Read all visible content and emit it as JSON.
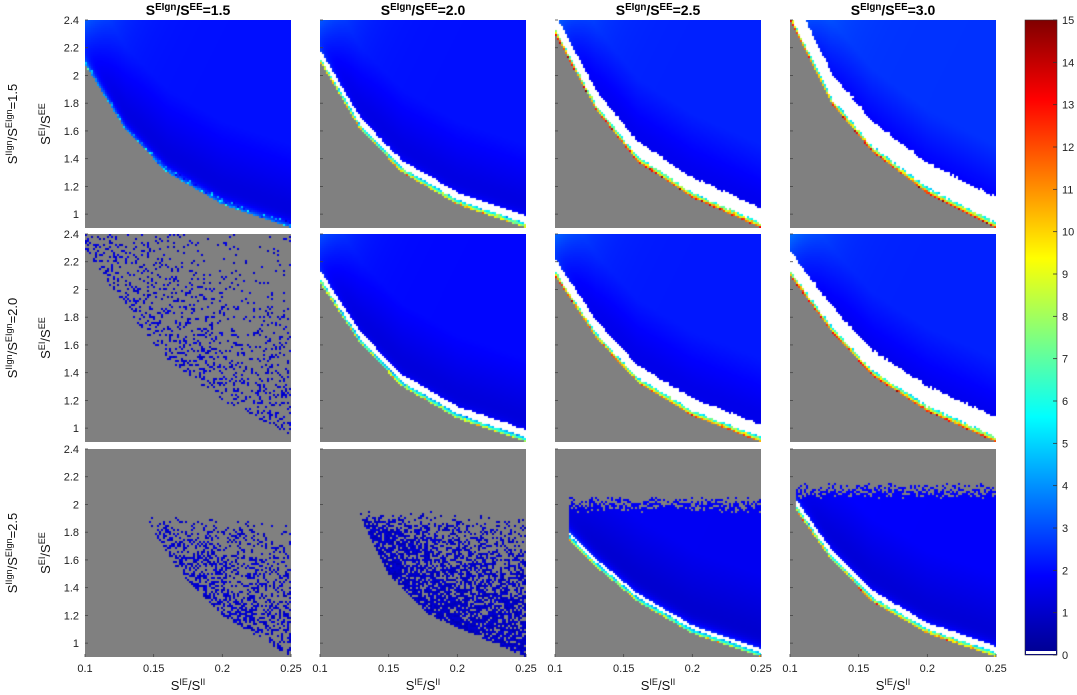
{
  "chart_data": {
    "type": "heatmap",
    "layout": "3x4 grid of small multiples sharing axes",
    "col_titles": [
      {
        "base": "S",
        "sup": "EIgn",
        "mid": "/S",
        "sup2": "EE",
        "value": "=1.5"
      },
      {
        "base": "S",
        "sup": "EIgn",
        "mid": "/S",
        "sup2": "EE",
        "value": "=2.0"
      },
      {
        "base": "S",
        "sup": "EIgn",
        "mid": "/S",
        "sup2": "EE",
        "value": "=2.5"
      },
      {
        "base": "S",
        "sup": "EIgn",
        "mid": "/S",
        "sup2": "EE",
        "value": "=3.0"
      }
    ],
    "row_titles": [
      {
        "base": "S",
        "sup": "IIgn",
        "mid": "/S",
        "sup2": "EIgn",
        "value": "=1.5"
      },
      {
        "base": "S",
        "sup": "IIgn",
        "mid": "/S",
        "sup2": "EIgn",
        "value": "=2.0"
      },
      {
        "base": "S",
        "sup": "IIgn",
        "mid": "/S",
        "sup2": "EIgn",
        "value": "=2.5"
      }
    ],
    "xlabel": {
      "base": "S",
      "sup": "IE",
      "mid": "/S",
      "sup2": "II"
    },
    "ylabel": {
      "base": "S",
      "sup": "EI",
      "mid": "/S",
      "sup2": "EE"
    },
    "xlim": [
      0.1,
      0.25
    ],
    "ylim": [
      0.9,
      2.4
    ],
    "xticks": [
      0.1,
      0.15,
      0.2,
      0.25
    ],
    "xtick_labels": [
      "0.1",
      "0.15",
      "0.2",
      "0.25"
    ],
    "yticks": [
      1,
      1.2,
      1.4,
      1.6,
      1.8,
      2,
      2.2,
      2.4
    ],
    "ytick_labels": [
      "1",
      "1.2",
      "1.4",
      "1.6",
      "1.8",
      "2",
      "2.2",
      "2.4"
    ],
    "colorbar": {
      "min": 0,
      "max": 15,
      "ticks": [
        0,
        1,
        2,
        3,
        4,
        5,
        6,
        7,
        8,
        9,
        10,
        11,
        12,
        13,
        14,
        15
      ],
      "tick_labels": [
        "0",
        "1",
        "2",
        "3",
        "4",
        "5",
        "6",
        "7",
        "8",
        "9",
        "10",
        "11",
        "12",
        "13",
        "14",
        "15"
      ],
      "colormap": "jet"
    },
    "background_color": "#808080",
    "saturated_color": "#ffffff",
    "panels": [
      {
        "row": 0,
        "col": 0,
        "boundary": [
          [
            0.1,
            2.08
          ],
          [
            0.13,
            1.6
          ],
          [
            0.16,
            1.3
          ],
          [
            0.2,
            1.07
          ],
          [
            0.25,
            0.9
          ]
        ],
        "mode": "solid",
        "level": 1.6,
        "edge_peak": 3,
        "white_band": false,
        "band_width": 0.04,
        "density": 1
      },
      {
        "row": 0,
        "col": 1,
        "boundary": [
          [
            0.1,
            2.1
          ],
          [
            0.13,
            1.6
          ],
          [
            0.16,
            1.3
          ],
          [
            0.2,
            1.07
          ],
          [
            0.25,
            0.9
          ]
        ],
        "mode": "solid",
        "level": 1.6,
        "edge_peak": 9,
        "white_band": true,
        "band_width": 0.06,
        "density": 1
      },
      {
        "row": 0,
        "col": 2,
        "boundary": [
          [
            0.1,
            2.3
          ],
          [
            0.13,
            1.75
          ],
          [
            0.16,
            1.38
          ],
          [
            0.2,
            1.12
          ],
          [
            0.25,
            0.9
          ]
        ],
        "mode": "solid",
        "level": 1.8,
        "edge_peak": 12,
        "white_band": true,
        "band_width": 0.12,
        "density": 1
      },
      {
        "row": 0,
        "col": 3,
        "boundary": [
          [
            0.1,
            2.4
          ],
          [
            0.13,
            1.8
          ],
          [
            0.16,
            1.45
          ],
          [
            0.2,
            1.15
          ],
          [
            0.25,
            0.9
          ]
        ],
        "mode": "solid",
        "level": 2,
        "edge_peak": 12,
        "white_band": true,
        "band_width": 0.2,
        "density": 1
      },
      {
        "row": 1,
        "col": 0,
        "boundary": [
          [
            0.1,
            2.3
          ],
          [
            0.13,
            1.85
          ],
          [
            0.16,
            1.5
          ],
          [
            0.2,
            1.2
          ],
          [
            0.25,
            0.95
          ]
        ],
        "mode": "sparse",
        "level": 1.4,
        "edge_peak": 1.5,
        "white_band": false,
        "band_width": 0,
        "density": 0.25
      },
      {
        "row": 1,
        "col": 1,
        "boundary": [
          [
            0.1,
            2.05
          ],
          [
            0.13,
            1.6
          ],
          [
            0.16,
            1.3
          ],
          [
            0.2,
            1.07
          ],
          [
            0.25,
            0.9
          ]
        ],
        "mode": "solid",
        "level": 1.5,
        "edge_peak": 8,
        "white_band": true,
        "band_width": 0.06,
        "density": 1
      },
      {
        "row": 1,
        "col": 2,
        "boundary": [
          [
            0.1,
            2.1
          ],
          [
            0.13,
            1.65
          ],
          [
            0.16,
            1.33
          ],
          [
            0.2,
            1.09
          ],
          [
            0.25,
            0.9
          ]
        ],
        "mode": "solid",
        "level": 1.7,
        "edge_peak": 11,
        "white_band": true,
        "band_width": 0.1,
        "density": 1
      },
      {
        "row": 1,
        "col": 3,
        "boundary": [
          [
            0.1,
            2.1
          ],
          [
            0.13,
            1.7
          ],
          [
            0.16,
            1.38
          ],
          [
            0.2,
            1.12
          ],
          [
            0.25,
            0.9
          ]
        ],
        "mode": "solid",
        "level": 1.8,
        "edge_peak": 12,
        "white_band": true,
        "band_width": 0.16,
        "density": 1
      },
      {
        "row": 2,
        "col": 0,
        "boundary": [
          [
            0.14,
            1.95
          ],
          [
            0.17,
            1.5
          ],
          [
            0.2,
            1.2
          ],
          [
            0.25,
            0.9
          ]
        ],
        "top": 1.85,
        "mode": "sparse",
        "level": 1.3,
        "edge_peak": 1.5,
        "white_band": false,
        "band_width": 0,
        "density": 0.45
      },
      {
        "row": 2,
        "col": 1,
        "boundary": [
          [
            0.125,
            2.0
          ],
          [
            0.15,
            1.5
          ],
          [
            0.18,
            1.2
          ],
          [
            0.25,
            0.9
          ]
        ],
        "top": 1.9,
        "mode": "sparse",
        "level": 1.2,
        "edge_peak": 2,
        "white_band": false,
        "band_width": 0,
        "density": 0.85
      },
      {
        "row": 2,
        "col": 2,
        "boundary": [
          [
            0.11,
            1.75
          ],
          [
            0.13,
            1.55
          ],
          [
            0.16,
            1.3
          ],
          [
            0.2,
            1.07
          ],
          [
            0.25,
            0.9
          ]
        ],
        "top": 2.0,
        "mode": "solid",
        "level": 1.3,
        "edge_peak": 8,
        "white_band": true,
        "band_width": 0.03,
        "density": 1
      },
      {
        "row": 2,
        "col": 3,
        "boundary": [
          [
            0.105,
            1.95
          ],
          [
            0.13,
            1.6
          ],
          [
            0.16,
            1.3
          ],
          [
            0.2,
            1.07
          ],
          [
            0.25,
            0.9
          ]
        ],
        "top": 2.1,
        "mode": "solid",
        "level": 1.4,
        "edge_peak": 10,
        "white_band": true,
        "band_width": 0.05,
        "density": 1
      }
    ]
  }
}
